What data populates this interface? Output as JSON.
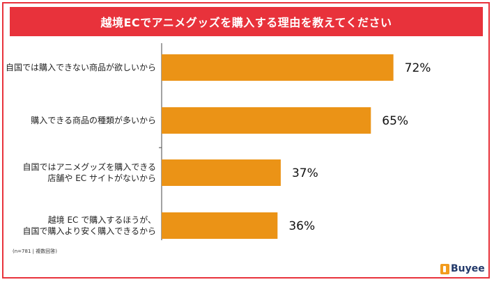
{
  "title": "越境ECでアニメグッズを購入する理由を教えてください",
  "note": "(n=781 | 複数回答)",
  "logo_text": "Buyee",
  "colors": {
    "frame": "#e8323b",
    "title_bg": "#e8323b",
    "bar": "#eb9316"
  },
  "chart_data": {
    "type": "bar",
    "orientation": "horizontal",
    "categories": [
      [
        "自国では購入できない商品が欲しいから"
      ],
      [
        "購入できる商品の種類が多いから"
      ],
      [
        "自国ではアニメグッズを購入できる",
        "店舗や EC サイトがないから"
      ],
      [
        "越境 EC で購入するほうが、",
        "自国で購入より安く購入できるから"
      ]
    ],
    "values": [
      72,
      65,
      37,
      36
    ],
    "value_labels": [
      "72%",
      "65%",
      "37%",
      "36%"
    ],
    "unit": "%",
    "xlim": [
      0,
      100
    ],
    "grid": false,
    "legend": "none"
  }
}
